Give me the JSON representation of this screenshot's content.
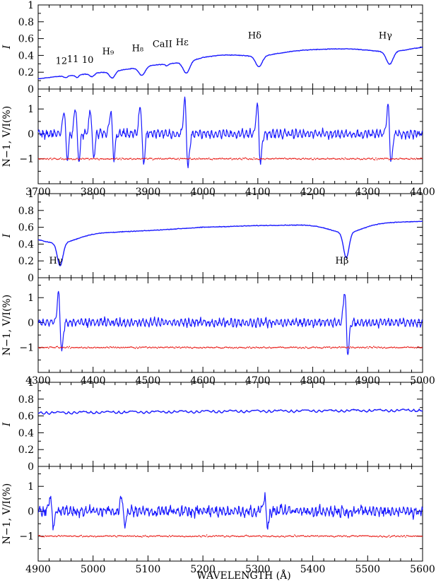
{
  "chart_data": [
    {
      "type": "line",
      "panel": "I",
      "ylabel": "I",
      "xlim": [
        3700,
        4400
      ],
      "ylim": [
        0,
        1
      ],
      "yticks": [
        0,
        0.2,
        0.4,
        0.6,
        0.8,
        1
      ],
      "ytick_labels": [
        "0",
        "0.2",
        "0.4",
        "0.6",
        "0.8",
        "1"
      ],
      "continuum": [
        [
          3700,
          0.12
        ],
        [
          3800,
          0.22
        ],
        [
          3900,
          0.32
        ],
        [
          4000,
          0.41
        ],
        [
          4100,
          0.44
        ],
        [
          4200,
          0.47
        ],
        [
          4300,
          0.49
        ],
        [
          4400,
          0.51
        ]
      ],
      "lines": [
        {
          "label": "12",
          "x": 3750,
          "depth": 0.02,
          "width": 3
        },
        {
          "label": "11",
          "x": 3771,
          "depth": 0.03,
          "width": 3
        },
        {
          "label": "10",
          "x": 3798,
          "depth": 0.04,
          "width": 4
        },
        {
          "label": "H₉",
          "x": 3835,
          "depth": 0.08,
          "width": 5
        },
        {
          "label": "H₈",
          "x": 3889,
          "depth": 0.1,
          "width": 6
        },
        {
          "label": "CaII",
          "x": 3934,
          "depth": 0.02,
          "width": 3
        },
        {
          "label": "Hε",
          "x": 3970,
          "depth": 0.14,
          "width": 6
        },
        {
          "label": "Hδ",
          "x": 4102,
          "depth": 0.13,
          "width": 6
        },
        {
          "label": "Hγ",
          "x": 4340,
          "depth": 0.15,
          "width": 6
        }
      ],
      "line_label_y": [
        0.3,
        0.32,
        0.31,
        0.41,
        0.45,
        0.5,
        0.52,
        0.6,
        0.6
      ]
    },
    {
      "type": "line",
      "panel": "V",
      "ylabel": "N−1, V/I(%)",
      "xlabel": "",
      "xlim": [
        3700,
        4400
      ],
      "ylim": [
        -2,
        1.8
      ],
      "yticks": [
        -1,
        0,
        1
      ],
      "ytick_labels": [
        "−1",
        "0",
        "1"
      ],
      "xticks": [
        3700,
        3800,
        3900,
        4000,
        4100,
        4200,
        4300,
        4400
      ],
      "xtick_labels": [
        "3700",
        "3800",
        "3900",
        "4000",
        "4100",
        "4200",
        "4300",
        "4400"
      ],
      "signatures": [
        [
          3750,
          1.0
        ],
        [
          3771,
          1.1
        ],
        [
          3798,
          1.0
        ],
        [
          3835,
          1.0
        ],
        [
          3889,
          1.2
        ],
        [
          3970,
          1.4
        ],
        [
          4102,
          1.2
        ],
        [
          4340,
          1.2
        ]
      ],
      "null_level": -1,
      "noise_amplitude": 0.15
    },
    {
      "type": "line",
      "panel": "I",
      "ylabel": "I",
      "xlim": [
        4300,
        5000
      ],
      "ylim": [
        0,
        1
      ],
      "yticks": [
        0,
        0.2,
        0.4,
        0.6,
        0.8,
        1
      ],
      "ytick_labels": [
        "0",
        "0.2",
        "0.4",
        "0.6",
        "0.8",
        "1"
      ],
      "continuum": [
        [
          4300,
          0.49
        ],
        [
          4400,
          0.53
        ],
        [
          4500,
          0.56
        ],
        [
          4600,
          0.6
        ],
        [
          4700,
          0.62
        ],
        [
          4800,
          0.63
        ],
        [
          4900,
          0.65
        ],
        [
          5000,
          0.67
        ]
      ],
      "lines": [
        {
          "label": "Hγ",
          "x": 4340,
          "depth": 0.27,
          "width": 5
        },
        {
          "label": "Hβ",
          "x": 4861,
          "depth": 0.3,
          "width": 5
        }
      ],
      "line_label_y": [
        0.17,
        0.17
      ]
    },
    {
      "type": "line",
      "panel": "V",
      "ylabel": "N−1, V/I(%)",
      "xlabel": "",
      "xlim": [
        4300,
        5000
      ],
      "ylim": [
        -2,
        1.8
      ],
      "yticks": [
        -1,
        0,
        1
      ],
      "ytick_labels": [
        "−1",
        "0",
        "1"
      ],
      "xticks": [
        4300,
        4400,
        4500,
        4600,
        4700,
        4800,
        4900,
        5000
      ],
      "xtick_labels": [
        "4300",
        "4400",
        "4500",
        "4600",
        "4700",
        "4800",
        "4900",
        "5000"
      ],
      "signatures": [
        [
          4340,
          1.2
        ],
        [
          4861,
          1.3
        ]
      ],
      "null_level": -1,
      "noise_amplitude": 0.15
    },
    {
      "type": "line",
      "panel": "I",
      "ylabel": "I",
      "xlim": [
        4900,
        5600
      ],
      "ylim": [
        0,
        1
      ],
      "yticks": [
        0,
        0.2,
        0.4,
        0.6,
        0.8,
        1
      ],
      "ytick_labels": [
        "0",
        "0.2",
        "0.4",
        "0.6",
        "0.8",
        "1"
      ],
      "continuum": [
        [
          4900,
          0.65
        ],
        [
          5100,
          0.66
        ],
        [
          5300,
          0.67
        ],
        [
          5600,
          0.68
        ]
      ],
      "lines": [],
      "line_label_y": []
    },
    {
      "type": "line",
      "panel": "V",
      "ylabel": "N−1, V/I(%)",
      "xlabel": "WAVELENGTH (Å)",
      "xlim": [
        4900,
        5600
      ],
      "ylim": [
        -2,
        1.8
      ],
      "yticks": [
        -1,
        0,
        1
      ],
      "ytick_labels": [
        "−1",
        "0",
        "1"
      ],
      "xticks": [
        4900,
        5000,
        5100,
        5200,
        5300,
        5400,
        5500,
        5600
      ],
      "xtick_labels": [
        "4900",
        "5000",
        "5100",
        "5200",
        "5300",
        "5400",
        "5500",
        "5600"
      ],
      "signatures": [
        [
          4925,
          0.6
        ],
        [
          5055,
          0.6
        ],
        [
          5315,
          0.6
        ]
      ],
      "null_level": -1,
      "noise_amplitude": 0.25
    }
  ],
  "colors": {
    "intensity": "#1a1aff",
    "stokes_v": "#1a1aff",
    "null_profile": "#e8140f"
  }
}
